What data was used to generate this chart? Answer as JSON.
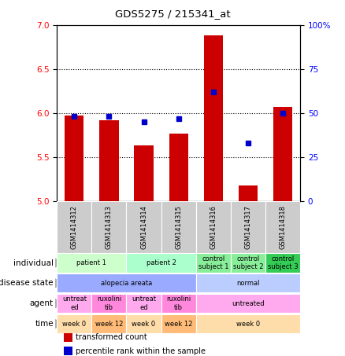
{
  "title": "GDS5275 / 215341_at",
  "samples": [
    "GSM1414312",
    "GSM1414313",
    "GSM1414314",
    "GSM1414315",
    "GSM1414316",
    "GSM1414317",
    "GSM1414318"
  ],
  "bar_values": [
    5.97,
    5.92,
    5.63,
    5.77,
    6.88,
    5.18,
    6.07
  ],
  "percentile_values": [
    48,
    48,
    45,
    47,
    62,
    33,
    50
  ],
  "ylim_left": [
    5.0,
    7.0
  ],
  "ylim_right": [
    0,
    100
  ],
  "yticks_left": [
    5.0,
    5.5,
    6.0,
    6.5,
    7.0
  ],
  "yticks_right": [
    0,
    25,
    50,
    75,
    100
  ],
  "ytick_labels_right": [
    "0",
    "25",
    "50",
    "75",
    "100%"
  ],
  "bar_color": "#cc0000",
  "dot_color": "#0000cc",
  "sample_bg_color": "#cccccc",
  "rows": {
    "individual": {
      "label": "individual",
      "cells": [
        {
          "text": "patient 1",
          "span": [
            0,
            1
          ],
          "color": "#ccffcc"
        },
        {
          "text": "patient 2",
          "span": [
            2,
            3
          ],
          "color": "#aaffcc"
        },
        {
          "text": "control\nsubject 1",
          "span": [
            4,
            4
          ],
          "color": "#88ee99"
        },
        {
          "text": "control\nsubject 2",
          "span": [
            5,
            5
          ],
          "color": "#88ee99"
        },
        {
          "text": "control\nsubject 3",
          "span": [
            6,
            6
          ],
          "color": "#33cc55"
        }
      ]
    },
    "disease_state": {
      "label": "disease state",
      "cells": [
        {
          "text": "alopecia areata",
          "span": [
            0,
            3
          ],
          "color": "#99aaff"
        },
        {
          "text": "normal",
          "span": [
            4,
            6
          ],
          "color": "#bbccff"
        }
      ]
    },
    "agent": {
      "label": "agent",
      "cells": [
        {
          "text": "untreat\ned",
          "span": [
            0,
            0
          ],
          "color": "#ffaaee"
        },
        {
          "text": "ruxolini\ntib",
          "span": [
            1,
            1
          ],
          "color": "#ff88dd"
        },
        {
          "text": "untreat\ned",
          "span": [
            2,
            2
          ],
          "color": "#ffaaee"
        },
        {
          "text": "ruxolini\ntib",
          "span": [
            3,
            3
          ],
          "color": "#ff88dd"
        },
        {
          "text": "untreated",
          "span": [
            4,
            6
          ],
          "color": "#ffaaee"
        }
      ]
    },
    "time": {
      "label": "time",
      "cells": [
        {
          "text": "week 0",
          "span": [
            0,
            0
          ],
          "color": "#ffddaa"
        },
        {
          "text": "week 12",
          "span": [
            1,
            1
          ],
          "color": "#ffbb77"
        },
        {
          "text": "week 0",
          "span": [
            2,
            2
          ],
          "color": "#ffddaa"
        },
        {
          "text": "week 12",
          "span": [
            3,
            3
          ],
          "color": "#ffbb77"
        },
        {
          "text": "week 0",
          "span": [
            4,
            6
          ],
          "color": "#ffddaa"
        }
      ]
    }
  },
  "row_order": [
    "individual",
    "disease_state",
    "agent",
    "time"
  ],
  "row_labels": [
    "individual",
    "disease state",
    "agent",
    "time"
  ],
  "legend": [
    {
      "color": "#cc0000",
      "label": "transformed count"
    },
    {
      "color": "#0000cc",
      "label": "percentile rank within the sample"
    }
  ]
}
